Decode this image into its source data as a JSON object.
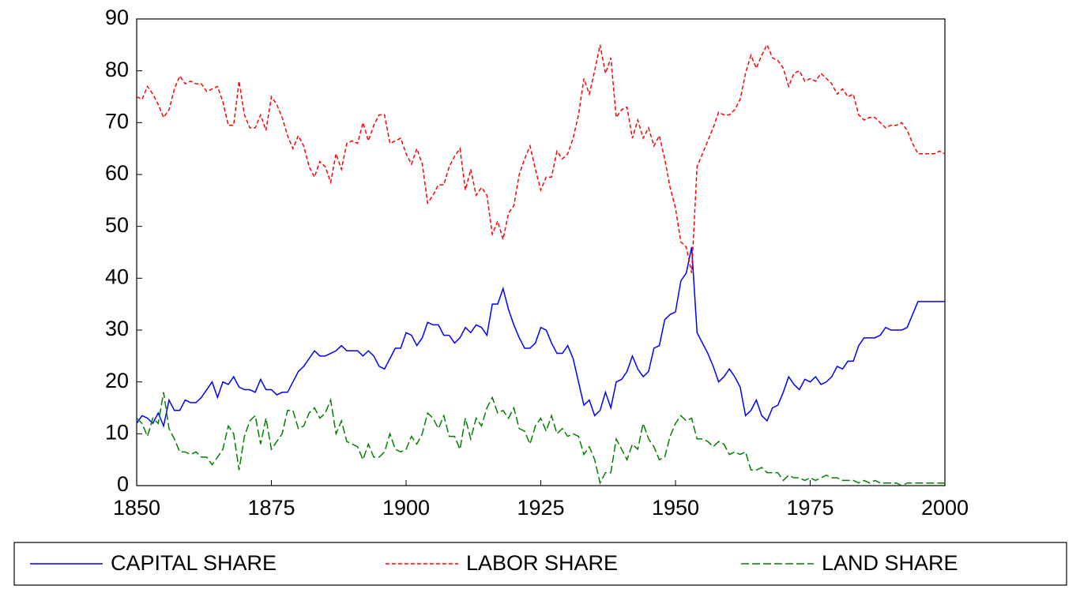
{
  "chart_data": {
    "type": "line",
    "x": [
      1850,
      1851,
      1852,
      1853,
      1854,
      1855,
      1856,
      1857,
      1858,
      1859,
      1860,
      1861,
      1862,
      1863,
      1864,
      1865,
      1866,
      1867,
      1868,
      1869,
      1870,
      1871,
      1872,
      1873,
      1874,
      1875,
      1876,
      1877,
      1878,
      1879,
      1880,
      1881,
      1882,
      1883,
      1884,
      1885,
      1886,
      1887,
      1888,
      1889,
      1890,
      1891,
      1892,
      1893,
      1894,
      1895,
      1896,
      1897,
      1898,
      1899,
      1900,
      1901,
      1902,
      1903,
      1904,
      1905,
      1906,
      1907,
      1908,
      1909,
      1910,
      1911,
      1912,
      1913,
      1914,
      1915,
      1916,
      1917,
      1918,
      1919,
      1920,
      1921,
      1922,
      1923,
      1924,
      1925,
      1926,
      1927,
      1928,
      1929,
      1930,
      1931,
      1932,
      1933,
      1934,
      1935,
      1936,
      1937,
      1938,
      1939,
      1940,
      1941,
      1942,
      1943,
      1944,
      1945,
      1946,
      1947,
      1948,
      1949,
      1950,
      1951,
      1952,
      1953,
      1954,
      1955,
      1956,
      1957,
      1958,
      1959,
      1960,
      1961,
      1962,
      1963,
      1964,
      1965,
      1966,
      1967,
      1968,
      1969,
      1970,
      1971,
      1972,
      1973,
      1974,
      1975,
      1976,
      1977,
      1978,
      1979,
      1980,
      1981,
      1982,
      1983,
      1984,
      1985,
      1986,
      1987,
      1988,
      1989,
      1990,
      1991,
      1992,
      1993,
      1994,
      1995,
      1996,
      1997,
      1998,
      1999,
      2000
    ],
    "series": [
      {
        "name": "CAPITAL SHARE",
        "color": "#0000ff",
        "dash": "none",
        "values": [
          12,
          13.5,
          13,
          12,
          14,
          11.5,
          16.5,
          14.5,
          14.5,
          16.5,
          16,
          16,
          17,
          18.5,
          20,
          17,
          20,
          19.5,
          21,
          19,
          18.5,
          18.5,
          18,
          20.5,
          18.5,
          18.5,
          17.5,
          18,
          18,
          20,
          22,
          23,
          24.5,
          26,
          25,
          25,
          25.5,
          26,
          27,
          26,
          26,
          26,
          25,
          26,
          25,
          23,
          22.5,
          24.5,
          26.5,
          26.5,
          29.5,
          29,
          27,
          28.5,
          31.5,
          31,
          31,
          29,
          29,
          27.5,
          28.5,
          30.5,
          29.5,
          31,
          30.5,
          29,
          35,
          35,
          38,
          34,
          31,
          28.5,
          26.5,
          26.5,
          27.5,
          30.5,
          30,
          27.5,
          25.5,
          25.5,
          27,
          24.5,
          20,
          15.5,
          16.5,
          13.5,
          14.5,
          18,
          15,
          20,
          20.5,
          22,
          25,
          22.5,
          21,
          22,
          26.5,
          27,
          32,
          33,
          33.5,
          39.5,
          41,
          46,
          29.5,
          27.5,
          25.5,
          23,
          20,
          21,
          22.5,
          21,
          19,
          13.5,
          14.5,
          16.5,
          13.5,
          12.5,
          15,
          15.5,
          18,
          21,
          19.5,
          18.5,
          20.5,
          20,
          21,
          19.5,
          20,
          21,
          23,
          22.5,
          24,
          24,
          27,
          28.5,
          28.5,
          28.5,
          29,
          30.5,
          30,
          30,
          30,
          30.5,
          33,
          35.5,
          35.5,
          35.5,
          35.5,
          35.5,
          35.5
        ]
      },
      {
        "name": "LABOR SHARE",
        "color": "#ff0000",
        "dash": "5,3",
        "values": [
          75,
          74.5,
          77,
          75.5,
          73.5,
          71,
          72.5,
          76.5,
          79,
          77.5,
          78,
          77.5,
          77.5,
          76,
          76.5,
          77,
          74,
          69.5,
          69.5,
          78,
          71.5,
          69,
          69,
          71.5,
          68.5,
          75,
          73.5,
          71,
          67.5,
          65,
          67.5,
          65.5,
          61.5,
          59.5,
          62.5,
          61.5,
          58.5,
          64,
          61,
          66,
          66.5,
          66,
          70,
          66.5,
          69.5,
          71.5,
          71.5,
          66,
          66.5,
          67,
          64,
          62,
          65,
          62,
          54.5,
          56,
          58,
          58,
          61.5,
          63.5,
          65,
          57,
          61,
          56,
          57.5,
          56,
          48.5,
          51,
          47.5,
          52.5,
          54,
          60,
          63,
          65.5,
          61,
          57,
          59.5,
          59.5,
          64.5,
          63,
          64,
          67,
          71.5,
          78.5,
          75.5,
          80,
          85,
          79.5,
          82.5,
          71,
          72.5,
          73,
          67,
          70.5,
          67,
          69,
          65.5,
          67.5,
          63,
          57.5,
          53.5,
          47,
          46,
          41,
          61.5,
          64,
          66.5,
          69,
          72,
          71.5,
          71.5,
          72.5,
          74.5,
          79.5,
          83,
          80.5,
          83,
          85,
          82.5,
          82,
          80.5,
          77,
          79.5,
          80,
          78,
          78.5,
          78,
          79.5,
          78.5,
          77.5,
          75.5,
          76.5,
          75,
          75.5,
          71.5,
          70.5,
          71,
          71,
          70,
          69,
          69.5,
          69.5,
          70,
          68.5,
          66,
          64,
          64,
          64,
          64,
          64.5,
          64
        ]
      },
      {
        "name": "LAND SHARE",
        "color": "#008000",
        "dash": "10,4",
        "values": [
          13,
          12,
          9.5,
          13,
          12,
          18,
          11,
          9,
          6.5,
          6.5,
          6,
          6.5,
          5.5,
          5.5,
          4,
          5.5,
          7,
          11.5,
          10,
          3,
          9.5,
          12.5,
          13.5,
          8,
          13,
          7,
          8.5,
          10,
          14.5,
          14.5,
          11,
          11.5,
          14,
          15,
          13,
          14,
          16.5,
          10,
          12.5,
          8.5,
          8,
          7.5,
          5,
          8,
          5.5,
          5.5,
          6.5,
          10,
          7,
          6.5,
          7,
          9.5,
          8,
          10,
          14,
          13,
          11,
          13.5,
          9.5,
          9.5,
          7,
          13,
          9,
          13,
          11.5,
          15,
          17,
          14,
          14.5,
          13,
          15,
          11,
          10.5,
          8,
          11.5,
          13,
          10.5,
          13.5,
          10,
          11,
          9.5,
          10,
          9.5,
          6,
          7.5,
          5,
          0.5,
          2.5,
          2.5,
          9,
          7,
          5,
          8,
          7,
          12,
          9,
          7.5,
          5,
          5.5,
          9.5,
          12,
          13.5,
          12.5,
          13,
          9,
          9,
          8.5,
          7.5,
          8.5,
          8,
          6,
          6.5,
          6,
          6.5,
          3,
          3,
          3.5,
          2.5,
          2.5,
          2.5,
          1,
          2,
          1.5,
          1.5,
          1,
          1.5,
          1,
          1.5,
          2,
          1.5,
          1.5,
          1,
          1,
          1,
          0.5,
          1,
          0.5,
          1,
          0.5,
          0.5,
          0.5,
          0.5,
          0,
          0.5,
          0.5,
          0.5,
          0.5,
          0.5,
          0.5,
          0.5,
          0.5
        ]
      }
    ],
    "xlim": [
      1850,
      2000
    ],
    "xticks": [
      1850,
      1875,
      1900,
      1925,
      1950,
      1975,
      2000
    ],
    "ylim": [
      0,
      90
    ],
    "yticks": [
      0,
      10,
      20,
      30,
      40,
      50,
      60,
      70,
      80,
      90
    ],
    "legend": "bottom"
  }
}
